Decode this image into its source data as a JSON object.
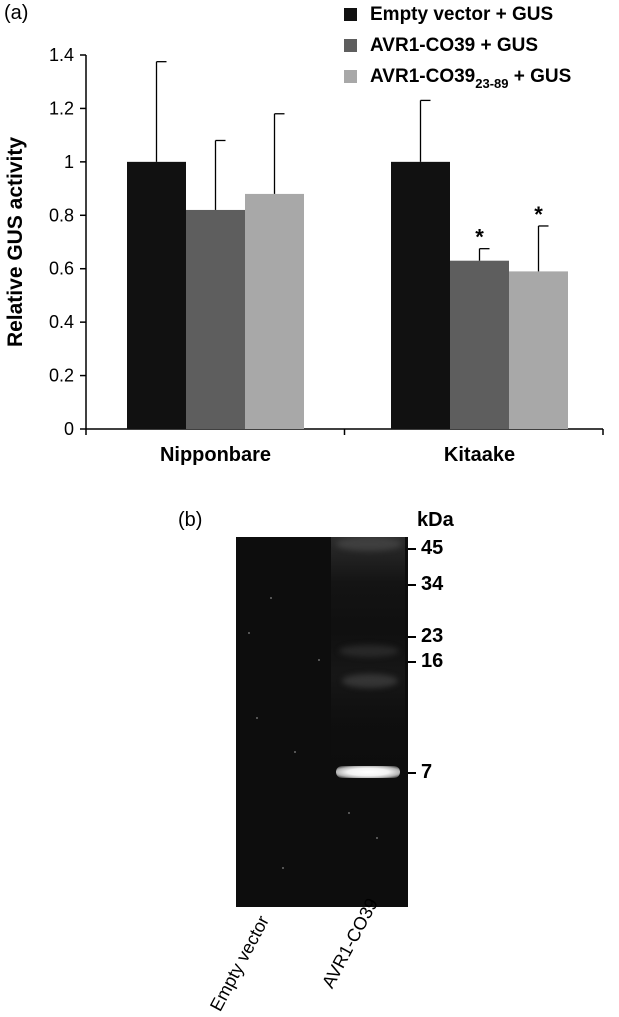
{
  "panel_a_label": "(a)",
  "panel_b_label": "(b)",
  "chart_data": {
    "type": "bar",
    "categories": [
      "Nipponbare",
      "Kitaake"
    ],
    "ylabel": "Relative GUS activity",
    "xlabel": "",
    "ylim": [
      0,
      1.4
    ],
    "yticks": [
      "0",
      "0.2",
      "0.4",
      "0.6",
      "0.8",
      "1",
      "1.2",
      "1.4"
    ],
    "legend_position": "top-right",
    "grid": false,
    "series": [
      {
        "name": "Empty vector + GUS",
        "name_parts": [
          "Empty vector + GUS"
        ],
        "color": "#111111",
        "values": [
          1.0,
          1.0
        ],
        "errors": [
          0.375,
          0.23
        ],
        "significant": [
          false,
          false
        ]
      },
      {
        "name": "AVR1-CO39 + GUS",
        "name_parts": [
          "AVR1-CO39 + GUS"
        ],
        "color": "#5e5e5e",
        "values": [
          0.82,
          0.63
        ],
        "errors": [
          0.26,
          0.045
        ],
        "significant": [
          false,
          true
        ]
      },
      {
        "name": "AVR1-CO3923-89 + GUS",
        "name_parts": [
          "AVR1-CO39",
          "23-89",
          " + GUS"
        ],
        "color": "#a8a8a8",
        "values": [
          0.88,
          0.59
        ],
        "errors": [
          0.3,
          0.17
        ],
        "significant": [
          false,
          true
        ]
      }
    ],
    "significance_marker": "*"
  },
  "gel": {
    "unit_label": "kDa",
    "markers": [
      "45",
      "34",
      "23",
      "16",
      "7"
    ],
    "lanes": [
      "Empty vector",
      "AVR1-CO39"
    ]
  }
}
